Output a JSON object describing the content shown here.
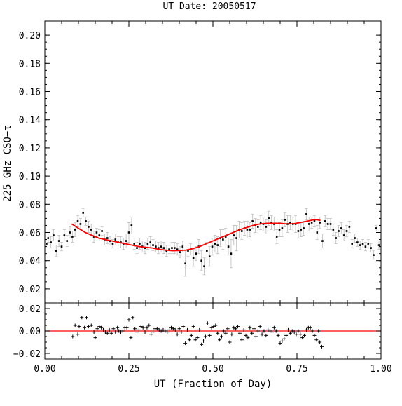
{
  "chart_data": {
    "type": "scatter",
    "title": "UT Date: 20050517",
    "xlabel": "UT (Fraction of Day)",
    "ylabel": "225 GHz CSO−τ",
    "colors": {
      "points": "#000000",
      "errorbars": "#c8c8c8",
      "fit": "#ff0000",
      "residual_zero": "#ff0000"
    },
    "main": {
      "xlim": [
        0.0,
        1.0
      ],
      "ylim": [
        0.01,
        0.21
      ],
      "yticks": [
        "0.02",
        "0.04",
        "0.06",
        "0.08",
        "0.10",
        "0.12",
        "0.14",
        "0.16",
        "0.18",
        "0.20"
      ],
      "points": [
        [
          0.005,
          0.052,
          0.0
        ],
        [
          0.01,
          0.056,
          0.003
        ],
        [
          0.018,
          0.053,
          0.004
        ],
        [
          0.026,
          0.058,
          0.004
        ],
        [
          0.034,
          0.047,
          0.004
        ],
        [
          0.042,
          0.054,
          0.004
        ],
        [
          0.05,
          0.05,
          0.003
        ],
        [
          0.058,
          0.058,
          0.004
        ],
        [
          0.066,
          0.054,
          0.004
        ],
        [
          0.075,
          0.06,
          0.004
        ],
        [
          0.082,
          0.057,
          0.004
        ],
        [
          0.09,
          0.062,
          0.005
        ],
        [
          0.098,
          0.068,
          0.004
        ],
        [
          0.106,
          0.066,
          0.004
        ],
        [
          0.114,
          0.074,
          0.003
        ],
        [
          0.122,
          0.068,
          0.003
        ],
        [
          0.13,
          0.064,
          0.004
        ],
        [
          0.138,
          0.062,
          0.004
        ],
        [
          0.146,
          0.057,
          0.004
        ],
        [
          0.154,
          0.06,
          0.003
        ],
        [
          0.162,
          0.058,
          0.004
        ],
        [
          0.17,
          0.061,
          0.003
        ],
        [
          0.178,
          0.055,
          0.004
        ],
        [
          0.186,
          0.056,
          0.004
        ],
        [
          0.194,
          0.054,
          0.003
        ],
        [
          0.202,
          0.052,
          0.003
        ],
        [
          0.21,
          0.055,
          0.004
        ],
        [
          0.218,
          0.053,
          0.004
        ],
        [
          0.226,
          0.053,
          0.004
        ],
        [
          0.234,
          0.052,
          0.004
        ],
        [
          0.242,
          0.054,
          0.005
        ],
        [
          0.25,
          0.06,
          0.007
        ],
        [
          0.258,
          0.065,
          0.006
        ],
        [
          0.266,
          0.052,
          0.004
        ],
        [
          0.274,
          0.049,
          0.004
        ],
        [
          0.282,
          0.052,
          0.004
        ],
        [
          0.29,
          0.05,
          0.004
        ],
        [
          0.298,
          0.049,
          0.004
        ],
        [
          0.306,
          0.052,
          0.004
        ],
        [
          0.314,
          0.053,
          0.004
        ],
        [
          0.322,
          0.051,
          0.004
        ],
        [
          0.33,
          0.05,
          0.004
        ],
        [
          0.338,
          0.049,
          0.004
        ],
        [
          0.346,
          0.05,
          0.004
        ],
        [
          0.354,
          0.049,
          0.004
        ],
        [
          0.362,
          0.047,
          0.004
        ],
        [
          0.37,
          0.048,
          0.003
        ],
        [
          0.378,
          0.049,
          0.004
        ],
        [
          0.386,
          0.049,
          0.004
        ],
        [
          0.394,
          0.048,
          0.004
        ],
        [
          0.402,
          0.046,
          0.004
        ],
        [
          0.41,
          0.05,
          0.004
        ],
        [
          0.418,
          0.038,
          0.009
        ],
        [
          0.426,
          0.047,
          0.004
        ],
        [
          0.434,
          0.048,
          0.004
        ],
        [
          0.442,
          0.042,
          0.006
        ],
        [
          0.45,
          0.045,
          0.005
        ],
        [
          0.458,
          0.05,
          0.005
        ],
        [
          0.466,
          0.04,
          0.007
        ],
        [
          0.474,
          0.036,
          0.006
        ],
        [
          0.482,
          0.047,
          0.006
        ],
        [
          0.49,
          0.043,
          0.007
        ],
        [
          0.498,
          0.05,
          0.006
        ],
        [
          0.506,
          0.052,
          0.006
        ],
        [
          0.514,
          0.051,
          0.006
        ],
        [
          0.522,
          0.056,
          0.006
        ],
        [
          0.53,
          0.055,
          0.007
        ],
        [
          0.538,
          0.057,
          0.006
        ],
        [
          0.546,
          0.05,
          0.006
        ],
        [
          0.554,
          0.045,
          0.01
        ],
        [
          0.562,
          0.058,
          0.007
        ],
        [
          0.57,
          0.056,
          0.009
        ],
        [
          0.578,
          0.062,
          0.006
        ],
        [
          0.586,
          0.061,
          0.006
        ],
        [
          0.594,
          0.063,
          0.005
        ],
        [
          0.602,
          0.062,
          0.006
        ],
        [
          0.61,
          0.062,
          0.005
        ],
        [
          0.618,
          0.068,
          0.005
        ],
        [
          0.626,
          0.065,
          0.005
        ],
        [
          0.634,
          0.064,
          0.005
        ],
        [
          0.642,
          0.067,
          0.005
        ],
        [
          0.65,
          0.066,
          0.005
        ],
        [
          0.658,
          0.064,
          0.005
        ],
        [
          0.666,
          0.07,
          0.005
        ],
        [
          0.674,
          0.067,
          0.005
        ],
        [
          0.682,
          0.066,
          0.005
        ],
        [
          0.69,
          0.057,
          0.005
        ],
        [
          0.698,
          0.062,
          0.005
        ],
        [
          0.706,
          0.063,
          0.006
        ],
        [
          0.714,
          0.069,
          0.005
        ],
        [
          0.722,
          0.066,
          0.006
        ],
        [
          0.73,
          0.067,
          0.005
        ],
        [
          0.738,
          0.066,
          0.005
        ],
        [
          0.746,
          0.066,
          0.006
        ],
        [
          0.754,
          0.061,
          0.005
        ],
        [
          0.762,
          0.062,
          0.005
        ],
        [
          0.77,
          0.063,
          0.005
        ],
        [
          0.778,
          0.073,
          0.004
        ],
        [
          0.786,
          0.066,
          0.005
        ],
        [
          0.794,
          0.067,
          0.004
        ],
        [
          0.802,
          0.068,
          0.004
        ],
        [
          0.81,
          0.06,
          0.005
        ],
        [
          0.818,
          0.067,
          0.004
        ],
        [
          0.826,
          0.054,
          0.005
        ],
        [
          0.834,
          0.068,
          0.004
        ],
        [
          0.842,
          0.066,
          0.004
        ],
        [
          0.85,
          0.066,
          0.004
        ],
        [
          0.858,
          0.062,
          0.004
        ],
        [
          0.866,
          0.056,
          0.004
        ],
        [
          0.874,
          0.061,
          0.004
        ],
        [
          0.882,
          0.063,
          0.004
        ],
        [
          0.89,
          0.058,
          0.004
        ],
        [
          0.898,
          0.061,
          0.004
        ],
        [
          0.906,
          0.064,
          0.004
        ],
        [
          0.914,
          0.052,
          0.003
        ],
        [
          0.922,
          0.056,
          0.003
        ],
        [
          0.93,
          0.053,
          0.003
        ],
        [
          0.938,
          0.051,
          0.003
        ],
        [
          0.946,
          0.052,
          0.003
        ],
        [
          0.954,
          0.05,
          0.003
        ],
        [
          0.962,
          0.052,
          0.003
        ],
        [
          0.97,
          0.049,
          0.003
        ],
        [
          0.978,
          0.044,
          0.003
        ],
        [
          0.986,
          0.063,
          0.002
        ],
        [
          0.994,
          0.051,
          0.003
        ]
      ],
      "fit": [
        [
          0.08,
          0.066
        ],
        [
          0.1,
          0.063
        ],
        [
          0.12,
          0.06
        ],
        [
          0.14,
          0.058
        ],
        [
          0.16,
          0.056
        ],
        [
          0.18,
          0.055
        ],
        [
          0.2,
          0.054
        ],
        [
          0.22,
          0.053
        ],
        [
          0.24,
          0.052
        ],
        [
          0.26,
          0.051
        ],
        [
          0.28,
          0.05
        ],
        [
          0.3,
          0.0495
        ],
        [
          0.32,
          0.049
        ],
        [
          0.34,
          0.048
        ],
        [
          0.36,
          0.0475
        ],
        [
          0.38,
          0.047
        ],
        [
          0.4,
          0.0472
        ],
        [
          0.42,
          0.0475
        ],
        [
          0.44,
          0.0485
        ],
        [
          0.46,
          0.05
        ],
        [
          0.48,
          0.052
        ],
        [
          0.5,
          0.054
        ],
        [
          0.52,
          0.056
        ],
        [
          0.54,
          0.058
        ],
        [
          0.56,
          0.06
        ],
        [
          0.58,
          0.062
        ],
        [
          0.6,
          0.0635
        ],
        [
          0.62,
          0.065
        ],
        [
          0.64,
          0.066
        ],
        [
          0.66,
          0.0665
        ],
        [
          0.68,
          0.0665
        ],
        [
          0.7,
          0.0665
        ],
        [
          0.72,
          0.066
        ],
        [
          0.74,
          0.0662
        ],
        [
          0.76,
          0.067
        ],
        [
          0.78,
          0.068
        ],
        [
          0.8,
          0.069
        ],
        [
          0.81,
          0.069
        ],
        [
          0.82,
          0.0685
        ]
      ]
    },
    "residuals": {
      "xlim": [
        0.0,
        1.0
      ],
      "ylim": [
        -0.025,
        0.025
      ],
      "yticks": [
        "0.02",
        "0.00",
        "−0.02"
      ],
      "xticks": [
        "0.00",
        "0.25",
        "0.50",
        "0.75",
        "1.00"
      ],
      "points": [
        [
          0.083,
          -0.005
        ],
        [
          0.09,
          0.005
        ],
        [
          0.098,
          -0.003
        ],
        [
          0.102,
          0.004
        ],
        [
          0.11,
          0.012
        ],
        [
          0.118,
          0.003
        ],
        [
          0.124,
          0.012
        ],
        [
          0.13,
          0.004
        ],
        [
          0.138,
          0.005
        ],
        [
          0.146,
          -0.001
        ],
        [
          0.15,
          -0.006
        ],
        [
          0.156,
          0.002
        ],
        [
          0.162,
          0.004
        ],
        [
          0.168,
          0.003
        ],
        [
          0.174,
          0.001
        ],
        [
          0.18,
          -0.001
        ],
        [
          0.186,
          -0.002
        ],
        [
          0.192,
          0.001
        ],
        [
          0.198,
          -0.002
        ],
        [
          0.204,
          0.002
        ],
        [
          0.21,
          -0.001
        ],
        [
          0.216,
          0.003
        ],
        [
          0.22,
          0.0
        ],
        [
          0.226,
          -0.001
        ],
        [
          0.232,
          0.0
        ],
        [
          0.238,
          0.003
        ],
        [
          0.244,
          0.003
        ],
        [
          0.25,
          0.01
        ],
        [
          0.256,
          -0.006
        ],
        [
          0.262,
          0.012
        ],
        [
          0.268,
          0.002
        ],
        [
          0.274,
          -0.001
        ],
        [
          0.28,
          0.001
        ],
        [
          0.286,
          0.004
        ],
        [
          0.292,
          0.003
        ],
        [
          0.298,
          -0.001
        ],
        [
          0.304,
          0.003
        ],
        [
          0.31,
          0.005
        ],
        [
          0.316,
          -0.003
        ],
        [
          0.322,
          -0.001
        ],
        [
          0.328,
          0.002
        ],
        [
          0.334,
          0.002
        ],
        [
          0.34,
          0.001
        ],
        [
          0.346,
          0.0
        ],
        [
          0.352,
          0.001
        ],
        [
          0.358,
          0.0
        ],
        [
          0.364,
          -0.001
        ],
        [
          0.37,
          0.001
        ],
        [
          0.376,
          0.003
        ],
        [
          0.382,
          0.002
        ],
        [
          0.388,
          0.001
        ],
        [
          0.394,
          -0.003
        ],
        [
          0.4,
          0.002
        ],
        [
          0.406,
          -0.001
        ],
        [
          0.412,
          0.004
        ],
        [
          0.418,
          -0.011
        ],
        [
          0.424,
          0.001
        ],
        [
          0.43,
          -0.008
        ],
        [
          0.436,
          -0.004
        ],
        [
          0.442,
          0.004
        ],
        [
          0.448,
          -0.008
        ],
        [
          0.454,
          -0.006
        ],
        [
          0.46,
          0.001
        ],
        [
          0.466,
          -0.012
        ],
        [
          0.472,
          -0.009
        ],
        [
          0.478,
          -0.005
        ],
        [
          0.484,
          0.007
        ],
        [
          0.49,
          -0.004
        ],
        [
          0.496,
          0.003
        ],
        [
          0.502,
          0.004
        ],
        [
          0.508,
          0.005
        ],
        [
          0.514,
          -0.002
        ],
        [
          0.52,
          -0.008
        ],
        [
          0.526,
          -0.005
        ],
        [
          0.532,
          0.0
        ],
        [
          0.538,
          -0.002
        ],
        [
          0.544,
          0.002
        ],
        [
          0.55,
          -0.01
        ],
        [
          0.556,
          -0.003
        ],
        [
          0.562,
          0.003
        ],
        [
          0.568,
          0.002
        ],
        [
          0.574,
          0.004
        ],
        [
          0.58,
          -0.002
        ],
        [
          0.586,
          -0.008
        ],
        [
          0.592,
          0.001
        ],
        [
          0.598,
          -0.004
        ],
        [
          0.604,
          -0.006
        ],
        [
          0.61,
          0.003
        ],
        [
          0.616,
          -0.002
        ],
        [
          0.622,
          0.002
        ],
        [
          0.628,
          -0.005
        ],
        [
          0.634,
          0.0
        ],
        [
          0.64,
          0.004
        ],
        [
          0.646,
          -0.003
        ],
        [
          0.652,
          0.0
        ],
        [
          0.658,
          -0.004
        ],
        [
          0.664,
          0.001
        ],
        [
          0.67,
          0.0
        ],
        [
          0.676,
          -0.001
        ],
        [
          0.682,
          0.003
        ],
        [
          0.688,
          0.0
        ],
        [
          0.694,
          -0.004
        ],
        [
          0.7,
          -0.011
        ],
        [
          0.706,
          -0.009
        ],
        [
          0.712,
          -0.007
        ],
        [
          0.718,
          -0.004
        ],
        [
          0.724,
          0.001
        ],
        [
          0.73,
          -0.002
        ],
        [
          0.736,
          0.0
        ],
        [
          0.742,
          -0.001
        ],
        [
          0.748,
          -0.003
        ],
        [
          0.754,
          0.0
        ],
        [
          0.76,
          -0.003
        ],
        [
          0.766,
          -0.006
        ],
        [
          0.772,
          -0.004
        ],
        [
          0.778,
          0.001
        ],
        [
          0.784,
          0.003
        ],
        [
          0.79,
          0.003
        ],
        [
          0.796,
          0.0
        ],
        [
          0.802,
          -0.004
        ],
        [
          0.808,
          -0.008
        ],
        [
          0.814,
          0.0
        ],
        [
          0.818,
          -0.01
        ],
        [
          0.824,
          -0.014
        ]
      ]
    }
  }
}
